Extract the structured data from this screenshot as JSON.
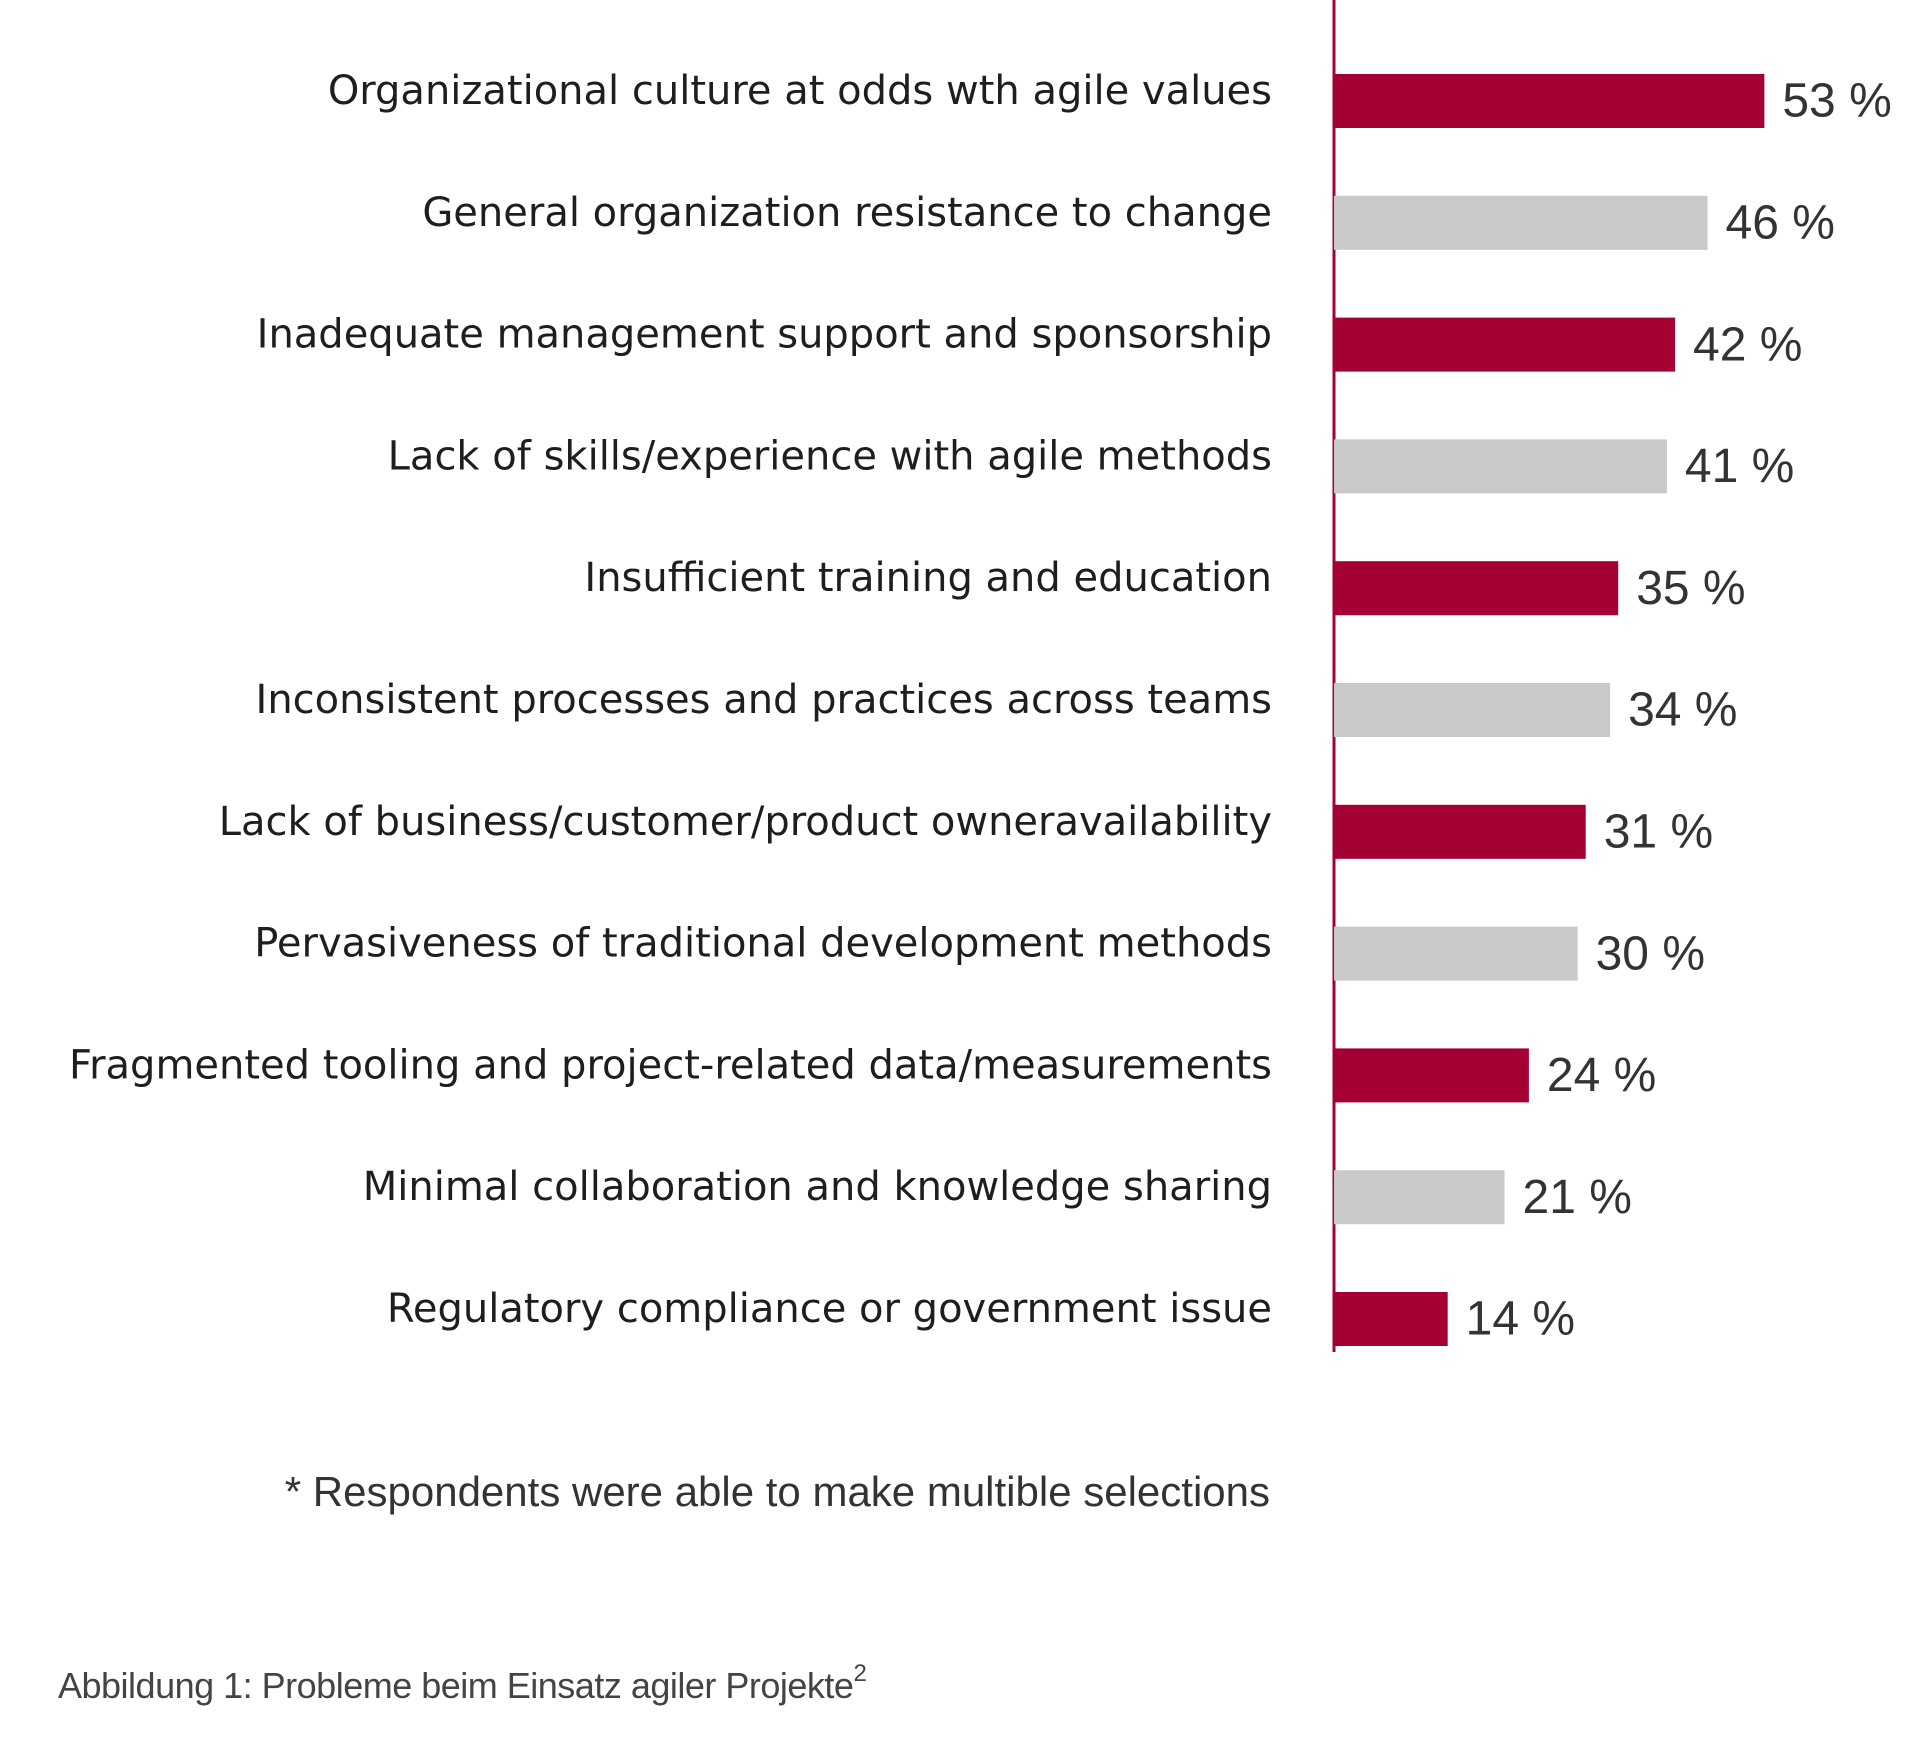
{
  "chart_data": {
    "type": "bar",
    "orientation": "horizontal",
    "categories": [
      "Organizational culture at odds wth agile values",
      "General organization resistance to change",
      "Inadequate management support and sponsorship",
      "Lack of skills/experience with agile methods",
      "Insufficient training and education",
      "Inconsistent processes and practices across teams",
      "Lack of business/customer/product owneravailability",
      "Pervasiveness of traditional development methods",
      "Fragmented tooling and project-related data/measurements",
      "Minimal collaboration and knowledge sharing",
      "Regulatory compliance or government issue"
    ],
    "values": [
      53,
      46,
      42,
      41,
      35,
      34,
      31,
      30,
      24,
      21,
      14
    ],
    "value_labels": [
      "53 %",
      "46 %",
      "42 %",
      "41 %",
      "35 %",
      "34 %",
      "31 %",
      "30 %",
      "24 %",
      "21 %",
      "14 %"
    ],
    "unit": "%",
    "bar_colors": [
      "#a50034",
      "#c9c9c9"
    ],
    "axis_color": "#a50034",
    "title": "",
    "xlabel": "",
    "ylabel": "",
    "grid": false
  },
  "footnote": "* Respondents were able to make multible selections",
  "caption": {
    "text": "Abbildung 1: Probleme beim Einsatz agiler Projekte",
    "superscript": "2"
  }
}
